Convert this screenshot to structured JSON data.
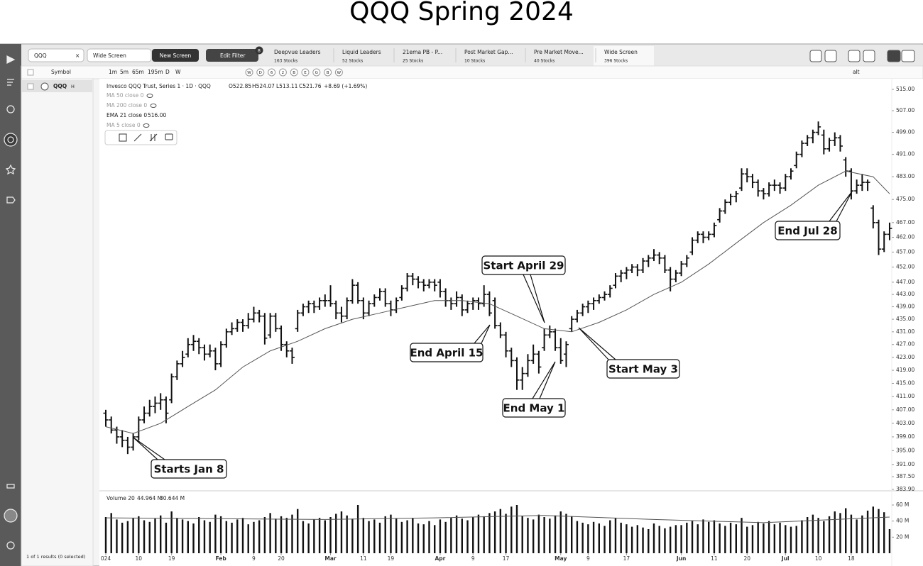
{
  "title": "QQQ Spring 2024",
  "app": {
    "search": "QQQ",
    "screen": "Wide Screen",
    "new_screen": "New Screen",
    "edit_filter": "Edit Filter",
    "filter_count": 8,
    "tabs": [
      {
        "name": "Deepvue Leaders",
        "count": "163 Stocks"
      },
      {
        "name": "Liquid Leaders",
        "count": "52 Stocks"
      },
      {
        "name": "21ema PB - P...",
        "count": "25 Stocks"
      },
      {
        "name": "Post Market Gap...",
        "count": "10 Stocks"
      },
      {
        "name": "Pre Market Move...",
        "count": "40 Stocks"
      },
      {
        "name": "Wide Screen",
        "count": "396 Stocks"
      }
    ],
    "toolbar": {
      "symbol": "Symbol",
      "timeframes": [
        "1m",
        "5m",
        "65m",
        "195m",
        "D",
        "W"
      ],
      "studies": [
        "W",
        "D",
        "6",
        "2",
        "B",
        "E",
        "G",
        "B",
        "W"
      ],
      "alt": "alt"
    },
    "watchlist": [
      {
        "symbol": "QQQ",
        "flag": "H"
      }
    ],
    "results": "1 of 1 results (0 selected)"
  },
  "chart_data": {
    "type": "ohlc",
    "legend": {
      "name": "Invesco QQQ Trust, Series 1 · 1D · QQQ",
      "open": "O522.85",
      "high": "H524.07",
      "low": "L513.11",
      "close": "C521.76",
      "change": "+8.69 (+1.69%)",
      "studies": [
        "MA 50 close 0",
        "MA 200 close 0",
        "EMA 21 close 0",
        "MA 5 close 0"
      ],
      "ema_value": "516.00"
    },
    "ohlc": [
      [
        406,
        407,
        402,
        404
      ],
      [
        404,
        405,
        400,
        401
      ],
      [
        401,
        402,
        397,
        399
      ],
      [
        399,
        401,
        396,
        398
      ],
      [
        398,
        399,
        394,
        396
      ],
      [
        396,
        400,
        395,
        399
      ],
      [
        399,
        405,
        398,
        404
      ],
      [
        404,
        408,
        403,
        406
      ],
      [
        406,
        410,
        405,
        408
      ],
      [
        408,
        411,
        406,
        409
      ],
      [
        409,
        412,
        407,
        410
      ],
      [
        410,
        411,
        403,
        406
      ],
      [
        410,
        418,
        409,
        417
      ],
      [
        417,
        422,
        416,
        421
      ],
      [
        421,
        425,
        420,
        423
      ],
      [
        424,
        429,
        423,
        427
      ],
      [
        427,
        430,
        425,
        428
      ],
      [
        428,
        429,
        424,
        426
      ],
      [
        426,
        427,
        422,
        424
      ],
      [
        424,
        427,
        423,
        425
      ],
      [
        425,
        426,
        419,
        421
      ],
      [
        421,
        428,
        420,
        427
      ],
      [
        427,
        432,
        426,
        431
      ],
      [
        431,
        434,
        430,
        432
      ],
      [
        432,
        435,
        431,
        434
      ],
      [
        434,
        435,
        431,
        433
      ],
      [
        433,
        437,
        432,
        435
      ],
      [
        435,
        439,
        434,
        437
      ],
      [
        437,
        438,
        434,
        436
      ],
      [
        436,
        437,
        427,
        429
      ],
      [
        430,
        437,
        429,
        436
      ],
      [
        436,
        437,
        431,
        432
      ],
      [
        432,
        433,
        425,
        427
      ],
      [
        427,
        428,
        423,
        425
      ],
      [
        425,
        426,
        421,
        423
      ],
      [
        432,
        438,
        431,
        437
      ],
      [
        437,
        440,
        436,
        439
      ],
      [
        439,
        441,
        437,
        440
      ],
      [
        440,
        441,
        437,
        439
      ],
      [
        439,
        442,
        438,
        441
      ],
      [
        441,
        443,
        439,
        441
      ],
      [
        441,
        446,
        439,
        440
      ],
      [
        440,
        441,
        435,
        437
      ],
      [
        437,
        439,
        434,
        436
      ],
      [
        436,
        442,
        435,
        441
      ],
      [
        441,
        448,
        440,
        446
      ],
      [
        446,
        447,
        440,
        441
      ],
      [
        441,
        442,
        435,
        437
      ],
      [
        437,
        441,
        436,
        440
      ],
      [
        440,
        443,
        439,
        442
      ],
      [
        442,
        445,
        441,
        444
      ],
      [
        444,
        445,
        439,
        440
      ],
      [
        440,
        441,
        436,
        438
      ],
      [
        438,
        442,
        437,
        441
      ],
      [
        442,
        446,
        441,
        445
      ],
      [
        445,
        450,
        444,
        449
      ],
      [
        449,
        450,
        446,
        448
      ],
      [
        448,
        449,
        445,
        447
      ],
      [
        447,
        448,
        444,
        446
      ],
      [
        446,
        448,
        445,
        447
      ],
      [
        447,
        448,
        444,
        446
      ],
      [
        447,
        448,
        442,
        444
      ],
      [
        444,
        445,
        439,
        441
      ],
      [
        441,
        442,
        438,
        440
      ],
      [
        440,
        444,
        439,
        442
      ],
      [
        442,
        443,
        436,
        438
      ],
      [
        438,
        441,
        437,
        440
      ],
      [
        440,
        442,
        438,
        441
      ],
      [
        441,
        442,
        438,
        440
      ],
      [
        440,
        446,
        439,
        443
      ],
      [
        443,
        444,
        436,
        437
      ],
      [
        441,
        442,
        432,
        433
      ],
      [
        433,
        434,
        429,
        430
      ],
      [
        430,
        431,
        423,
        425
      ],
      [
        425,
        426,
        420,
        422
      ],
      [
        422,
        423,
        413,
        416
      ],
      [
        416,
        420,
        413,
        418
      ],
      [
        418,
        424,
        417,
        422
      ],
      [
        422,
        427,
        421,
        424
      ],
      [
        424,
        425,
        418,
        420
      ],
      [
        426,
        432,
        425,
        430
      ],
      [
        430,
        433,
        429,
        431
      ],
      [
        431,
        432,
        425,
        426
      ],
      [
        426,
        429,
        421,
        422
      ],
      [
        424,
        428,
        420,
        427
      ],
      [
        432,
        436,
        431,
        435
      ],
      [
        435,
        438,
        434,
        437
      ],
      [
        437,
        440,
        436,
        439
      ],
      [
        439,
        441,
        437,
        440
      ],
      [
        440,
        442,
        438,
        441
      ],
      [
        441,
        443,
        440,
        442
      ],
      [
        442,
        444,
        441,
        443
      ],
      [
        443,
        446,
        442,
        445
      ],
      [
        446,
        450,
        445,
        449
      ],
      [
        449,
        451,
        447,
        450
      ],
      [
        450,
        452,
        448,
        451
      ],
      [
        451,
        453,
        450,
        452
      ],
      [
        452,
        453,
        449,
        451
      ],
      [
        451,
        455,
        450,
        454
      ],
      [
        454,
        456,
        452,
        455
      ],
      [
        455,
        458,
        454,
        456
      ],
      [
        456,
        457,
        453,
        455
      ],
      [
        455,
        456,
        450,
        451
      ],
      [
        451,
        452,
        444,
        448
      ],
      [
        448,
        451,
        447,
        450
      ],
      [
        450,
        454,
        449,
        453
      ],
      [
        453,
        456,
        452,
        455
      ],
      [
        457,
        462,
        456,
        461
      ],
      [
        461,
        464,
        460,
        463
      ],
      [
        463,
        464,
        460,
        462
      ],
      [
        462,
        464,
        461,
        463
      ],
      [
        463,
        467,
        462,
        466
      ],
      [
        468,
        472,
        467,
        471
      ],
      [
        471,
        475,
        470,
        474
      ],
      [
        474,
        477,
        473,
        476
      ],
      [
        476,
        478,
        474,
        477
      ],
      [
        479,
        486,
        478,
        484
      ],
      [
        484,
        486,
        481,
        483
      ],
      [
        483,
        484,
        479,
        481
      ],
      [
        481,
        482,
        476,
        478
      ],
      [
        478,
        479,
        475,
        477
      ],
      [
        477,
        481,
        476,
        480
      ],
      [
        480,
        482,
        478,
        480
      ],
      [
        480,
        481,
        477,
        479
      ],
      [
        479,
        484,
        478,
        483
      ],
      [
        483,
        486,
        482,
        485
      ],
      [
        487,
        492,
        486,
        491
      ],
      [
        491,
        496,
        490,
        495
      ],
      [
        495,
        498,
        494,
        497
      ],
      [
        497,
        500,
        495,
        499
      ],
      [
        499,
        503,
        498,
        501
      ],
      [
        498,
        500,
        491,
        493
      ],
      [
        493,
        497,
        492,
        496
      ],
      [
        496,
        499,
        494,
        497
      ],
      [
        497,
        498,
        492,
        494
      ],
      [
        489,
        490,
        483,
        485
      ],
      [
        485,
        486,
        475,
        478
      ],
      [
        478,
        482,
        477,
        480
      ],
      [
        480,
        484,
        478,
        481
      ],
      [
        481,
        482,
        478,
        481
      ],
      [
        472,
        473,
        465,
        467
      ],
      [
        467,
        468,
        456,
        458
      ],
      [
        458,
        464,
        457,
        463
      ],
      [
        463,
        467,
        461,
        465
      ]
    ],
    "ema": {
      "name": "EMA 21",
      "color": "#555555",
      "x": [
        0,
        5,
        10,
        15,
        20,
        25,
        30,
        35,
        40,
        45,
        50,
        55,
        60,
        65,
        70,
        75,
        80,
        85,
        90,
        95,
        100,
        105,
        110,
        115,
        120,
        125,
        130,
        135,
        140,
        143
      ],
      "values": [
        402,
        400,
        403,
        408,
        413,
        420,
        425,
        428,
        432,
        435,
        437,
        439,
        441,
        441,
        440,
        436,
        432,
        431,
        434,
        438,
        443,
        447,
        453,
        460,
        467,
        473,
        480,
        485,
        483,
        477
      ]
    },
    "color": "#111111",
    "log_scale": true,
    "ylim": [
      383.9,
      518.5
    ],
    "yticks": [
      {
        "value": 515,
        "label": "515.00"
      },
      {
        "value": 507,
        "label": "507.00"
      },
      {
        "value": 499,
        "label": "499.00"
      },
      {
        "value": 491,
        "label": "491.00"
      },
      {
        "value": 483,
        "label": "483.00"
      },
      {
        "value": 475,
        "label": "475.00"
      },
      {
        "value": 467,
        "label": "467.00"
      },
      {
        "value": 462,
        "label": "462.00"
      },
      {
        "value": 457,
        "label": "457.00"
      },
      {
        "value": 452,
        "label": "452.00"
      },
      {
        "value": 447,
        "label": "447.00"
      },
      {
        "value": 443,
        "label": "443.00"
      },
      {
        "value": 439,
        "label": "439.00"
      },
      {
        "value": 435,
        "label": "435.00"
      },
      {
        "value": 431,
        "label": "431.00"
      },
      {
        "value": 427,
        "label": "427.00"
      },
      {
        "value": 423,
        "label": "423.00"
      },
      {
        "value": 419,
        "label": "419.00"
      },
      {
        "value": 415,
        "label": "415.00"
      },
      {
        "value": 411,
        "label": "411.00"
      },
      {
        "value": 407,
        "label": "407.00"
      },
      {
        "value": 403,
        "label": "403.00"
      },
      {
        "value": 399,
        "label": "399.00"
      },
      {
        "value": 395,
        "label": "395.00"
      },
      {
        "value": 391,
        "label": "391.00"
      },
      {
        "value": 387.5,
        "label": "387.50"
      },
      {
        "value": 383.9,
        "label": "383.90"
      }
    ],
    "xticks": [
      {
        "value": 0,
        "label": "024"
      },
      {
        "value": 6,
        "label": "10"
      },
      {
        "value": 12,
        "label": "19"
      },
      {
        "value": 21,
        "label": "Feb"
      },
      {
        "value": 27,
        "label": "9"
      },
      {
        "value": 32,
        "label": "20"
      },
      {
        "value": 41,
        "label": "Mar"
      },
      {
        "value": 47,
        "label": "11"
      },
      {
        "value": 52,
        "label": "19"
      },
      {
        "value": 61,
        "label": "Apr"
      },
      {
        "value": 67,
        "label": "9"
      },
      {
        "value": 73,
        "label": "17"
      },
      {
        "value": 83,
        "label": "May"
      },
      {
        "value": 88,
        "label": "9"
      },
      {
        "value": 95,
        "label": "17"
      },
      {
        "value": 105,
        "label": "Jun"
      },
      {
        "value": 111,
        "label": "11"
      },
      {
        "value": 117,
        "label": "20"
      },
      {
        "value": 124,
        "label": "Jul"
      },
      {
        "value": 130,
        "label": "10"
      },
      {
        "value": 136,
        "label": "18"
      }
    ],
    "volume": {
      "label": "Volume 20",
      "readouts": [
        "44.964 M",
        "30.644 M"
      ],
      "values": [
        45,
        50,
        42,
        38,
        40,
        44,
        46,
        41,
        39,
        43,
        47,
        38,
        52,
        44,
        42,
        40,
        37,
        45,
        41,
        39,
        48,
        46,
        40,
        38,
        42,
        44,
        36,
        39,
        41,
        45,
        50,
        43,
        46,
        44,
        48,
        55,
        40,
        37,
        42,
        44,
        41,
        45,
        49,
        52,
        47,
        43,
        60,
        44,
        40,
        42,
        38,
        46,
        48,
        43,
        39,
        41,
        44,
        37,
        36,
        40,
        35,
        42,
        39,
        44,
        47,
        43,
        41,
        45,
        48,
        46,
        50,
        52,
        55,
        49,
        58,
        60,
        46,
        44,
        42,
        48,
        45,
        43,
        47,
        52,
        49,
        46,
        40,
        38,
        36,
        39,
        37,
        34,
        41,
        44,
        38,
        36,
        33,
        35,
        32,
        30,
        37,
        34,
        31,
        33,
        35,
        35,
        38,
        40,
        36,
        42,
        39,
        41,
        37,
        34,
        38,
        36,
        44,
        33,
        35,
        39,
        37,
        40,
        36,
        38,
        35,
        33,
        34,
        41,
        45,
        48,
        44,
        40,
        46,
        52,
        50,
        56,
        48,
        42,
        47,
        53,
        58,
        55,
        51,
        30
      ],
      "ylim": [
        0,
        75
      ],
      "yticks": [
        {
          "value": 60,
          "label": "60 M"
        },
        {
          "value": 40,
          "label": "40 M"
        },
        {
          "value": 20,
          "label": "20 M"
        }
      ],
      "ma": {
        "x": [
          0,
          20,
          40,
          60,
          80,
          100,
          120,
          143
        ],
        "values": [
          44,
          43,
          42,
          44,
          47,
          42,
          38,
          45
        ]
      }
    },
    "annotations": [
      "Starts Jan 8",
      "End April 15",
      "Start April 29",
      "End May 1",
      "Start May 3",
      "End Jul 28"
    ]
  }
}
